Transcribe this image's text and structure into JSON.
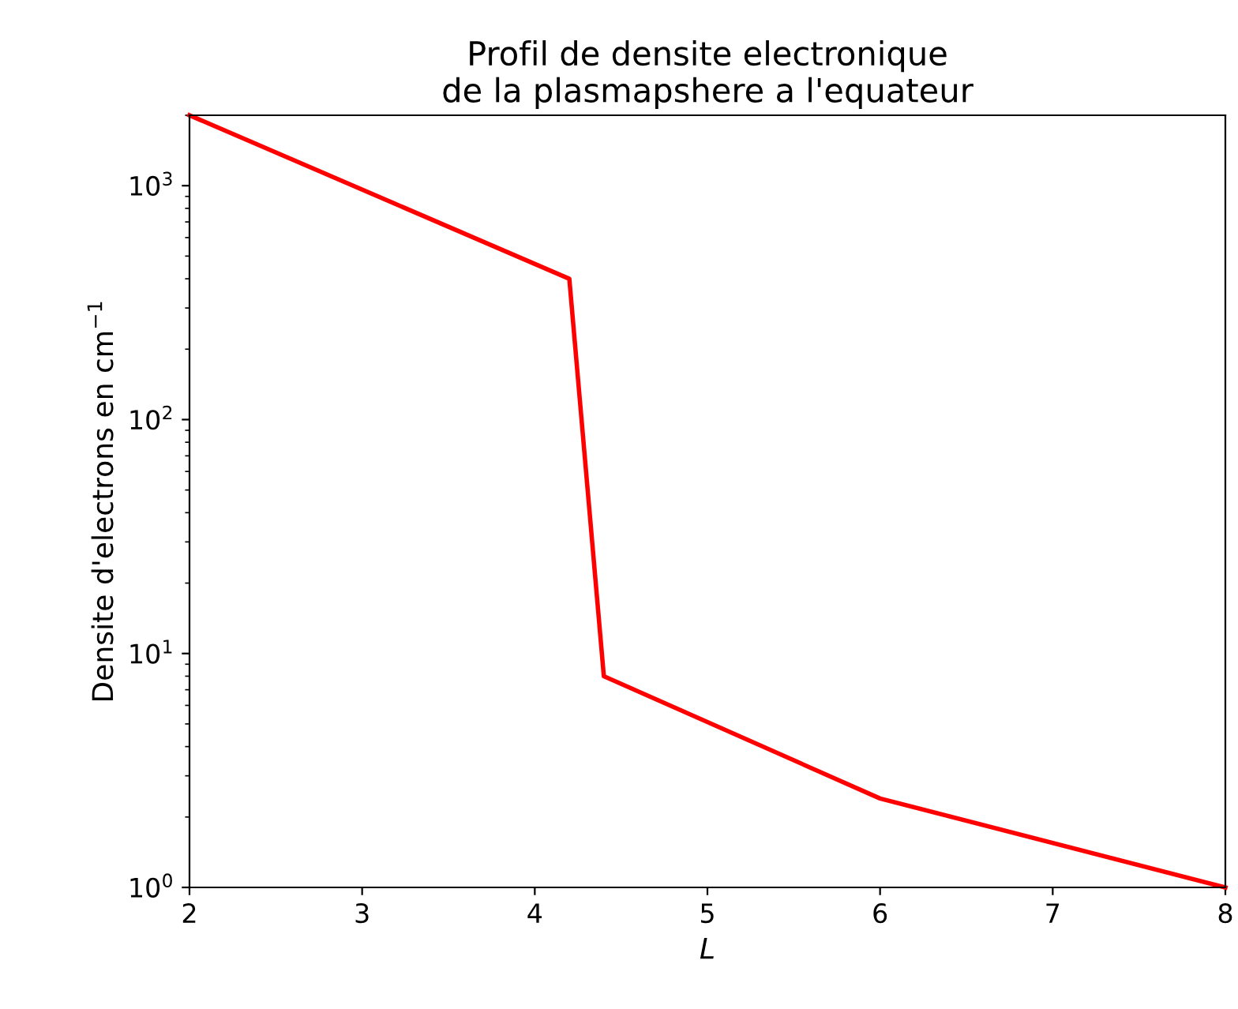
{
  "chart_data": {
    "type": "line",
    "title": "Profil de densite electronique\nde la plasmapshere a l'equateur",
    "xlabel": "L",
    "ylabel": "Densite d'electrons en cm$^{−1}$",
    "x": [
      2,
      4.2,
      4.4,
      6,
      8
    ],
    "series": [
      {
        "color": "#ff0000",
        "values": [
          2000,
          400,
          8,
          2.4,
          1
        ]
      }
    ],
    "log": "y",
    "xlim": [
      2,
      8
    ],
    "xticks": [
      2,
      3,
      4,
      5,
      6,
      7,
      8
    ],
    "ylim": [
      1,
      2000
    ],
    "yticks": [
      {
        "value": 1,
        "label": "10$^{0}$"
      },
      {
        "value": 10,
        "label": "10$^{1}$"
      },
      {
        "value": 100,
        "label": "10$^{2}$"
      },
      {
        "value": 1000,
        "label": "10$^{3}$"
      }
    ],
    "grid": false,
    "legend": false,
    "marker": "none",
    "line_style": "solid"
  }
}
